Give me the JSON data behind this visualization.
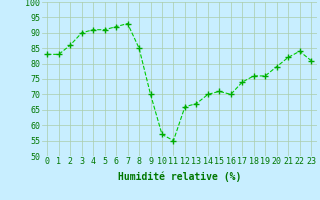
{
  "x": [
    0,
    1,
    2,
    3,
    4,
    5,
    6,
    7,
    8,
    9,
    10,
    11,
    12,
    13,
    14,
    15,
    16,
    17,
    18,
    19,
    20,
    21,
    22,
    23
  ],
  "y": [
    83,
    83,
    86,
    90,
    91,
    91,
    92,
    93,
    85,
    70,
    57,
    55,
    66,
    67,
    70,
    71,
    70,
    74,
    76,
    76,
    79,
    82,
    84,
    81
  ],
  "line_color": "#00cc00",
  "marker_color": "#00aa00",
  "bg_color": "#c8eeff",
  "grid_color": "#aaccaa",
  "xlabel": "Humidité relative (%)",
  "xlabel_color": "#007700",
  "xlabel_fontsize": 7,
  "tick_label_color": "#007700",
  "tick_fontsize": 6,
  "ylim": [
    50,
    100
  ],
  "xlim": [
    -0.5,
    23.5
  ],
  "yticks": [
    50,
    55,
    60,
    65,
    70,
    75,
    80,
    85,
    90,
    95,
    100
  ],
  "xticks": [
    0,
    1,
    2,
    3,
    4,
    5,
    6,
    7,
    8,
    9,
    10,
    11,
    12,
    13,
    14,
    15,
    16,
    17,
    18,
    19,
    20,
    21,
    22,
    23
  ]
}
